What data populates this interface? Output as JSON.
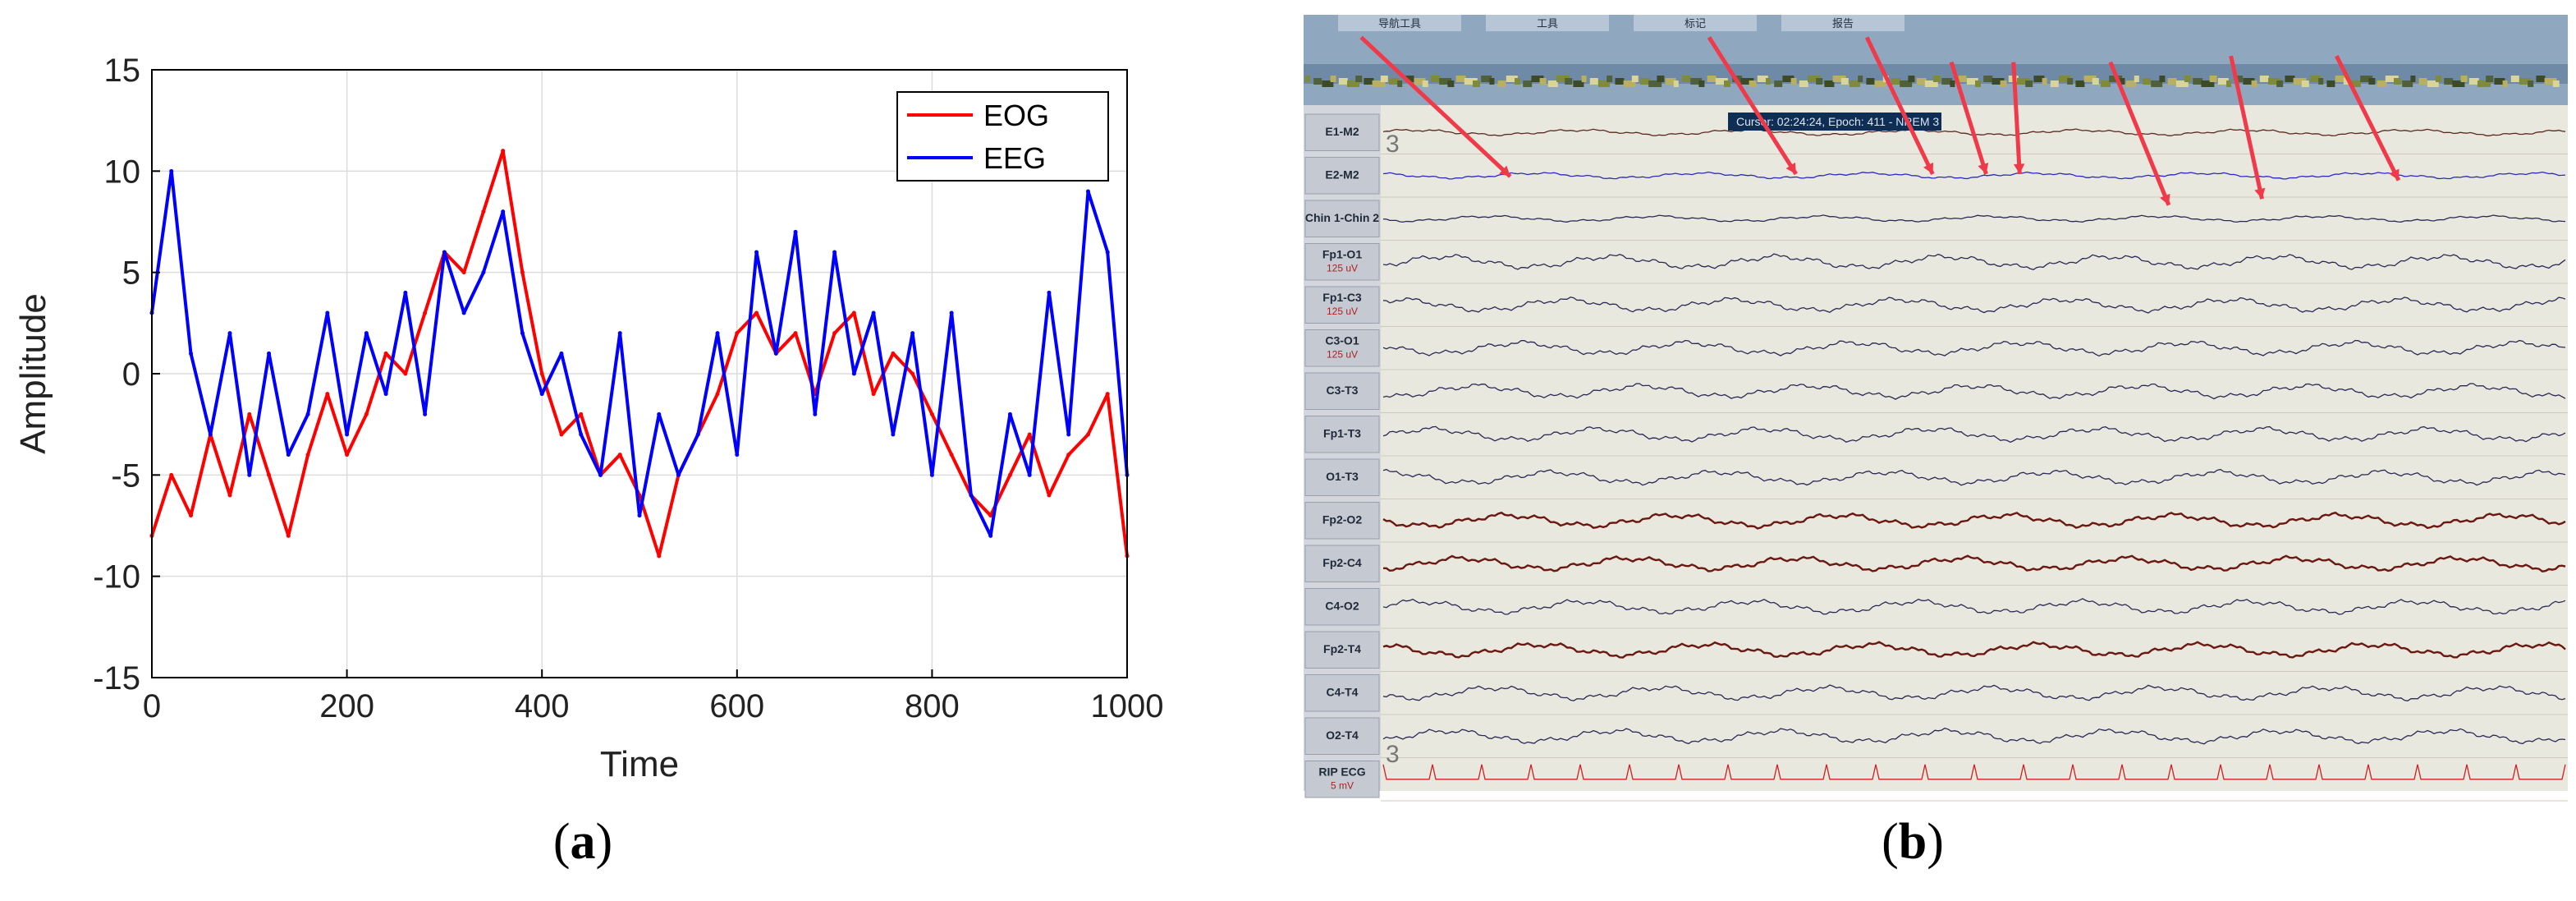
{
  "captions": {
    "a_open": "(",
    "a_letter": "a",
    "a_close": ")",
    "b_open": "(",
    "b_letter": "b",
    "b_close": ")"
  },
  "chart_data": {
    "type": "line",
    "xlabel": "Time",
    "ylabel": "Amplitude",
    "xlim": [
      0,
      1000
    ],
    "ylim": [
      -15,
      15
    ],
    "xticks": [
      0,
      200,
      400,
      600,
      800,
      1000
    ],
    "yticks": [
      -15,
      -10,
      -5,
      0,
      5,
      10,
      15
    ],
    "grid": true,
    "legend": "top-right",
    "series": [
      {
        "name": "EOG",
        "color": "#ff0000",
        "x": [
          0,
          20,
          40,
          60,
          80,
          100,
          120,
          140,
          160,
          180,
          200,
          220,
          240,
          260,
          280,
          300,
          320,
          340,
          360,
          380,
          400,
          420,
          440,
          460,
          480,
          500,
          520,
          540,
          560,
          580,
          600,
          620,
          640,
          660,
          680,
          700,
          720,
          740,
          760,
          780,
          800,
          820,
          840,
          860,
          880,
          900,
          920,
          940,
          960,
          980,
          1000
        ],
        "y": [
          -8,
          -5,
          -7,
          -3,
          -6,
          -2,
          -5,
          -8,
          -4,
          -1,
          -4,
          -2,
          1,
          0,
          3,
          6,
          5,
          8,
          11,
          5,
          0,
          -3,
          -2,
          -5,
          -4,
          -6,
          -9,
          -5,
          -3,
          -1,
          2,
          3,
          1,
          2,
          -1,
          2,
          3,
          -1,
          1,
          0,
          -2,
          -4,
          -6,
          -7,
          -5,
          -3,
          -6,
          -4,
          -3,
          -1,
          -9
        ]
      },
      {
        "name": "EEG",
        "color": "#0000ff",
        "x": [
          0,
          20,
          40,
          60,
          80,
          100,
          120,
          140,
          160,
          180,
          200,
          220,
          240,
          260,
          280,
          300,
          320,
          340,
          360,
          380,
          400,
          420,
          440,
          460,
          480,
          500,
          520,
          540,
          560,
          580,
          600,
          620,
          640,
          660,
          680,
          700,
          720,
          740,
          760,
          780,
          800,
          820,
          840,
          860,
          880,
          900,
          920,
          940,
          960,
          980,
          1000
        ],
        "y": [
          3,
          10,
          1,
          -3,
          2,
          -5,
          1,
          -4,
          -2,
          3,
          -3,
          2,
          -1,
          4,
          -2,
          6,
          3,
          5,
          8,
          2,
          -1,
          1,
          -3,
          -5,
          2,
          -7,
          -2,
          -5,
          -3,
          2,
          -4,
          6,
          1,
          7,
          -2,
          6,
          0,
          3,
          -3,
          2,
          -5,
          3,
          -6,
          -8,
          -2,
          -5,
          4,
          -3,
          9,
          6,
          -5
        ]
      }
    ]
  },
  "eeg_screen": {
    "menu_tabs": [
      "导航工具",
      "工具",
      "标记",
      "报告"
    ],
    "cursor_readout": "Cursor: 02:24:24, Epoch: 411 - NREM 3",
    "scale_marker": "3",
    "channels": [
      {
        "label": "E1-M2",
        "sub": ""
      },
      {
        "label": "E2-M2",
        "sub": ""
      },
      {
        "label": "Chin 1-Chin 2",
        "sub": ""
      },
      {
        "label": "Fp1-O1",
        "sub": "125 uV"
      },
      {
        "label": "Fp1-C3",
        "sub": "125 uV"
      },
      {
        "label": "C3-O1",
        "sub": "125 uV"
      },
      {
        "label": "C3-T3",
        "sub": ""
      },
      {
        "label": "Fp1-T3",
        "sub": ""
      },
      {
        "label": "O1-T3",
        "sub": ""
      },
      {
        "label": "Fp2-O2",
        "sub": ""
      },
      {
        "label": "Fp2-C4",
        "sub": ""
      },
      {
        "label": "C4-O2",
        "sub": ""
      },
      {
        "label": "Fp2-T4",
        "sub": ""
      },
      {
        "label": "C4-T4",
        "sub": ""
      },
      {
        "label": "O2-T4",
        "sub": ""
      },
      {
        "label": "RIP ECG",
        "sub": "5 mV"
      }
    ]
  }
}
